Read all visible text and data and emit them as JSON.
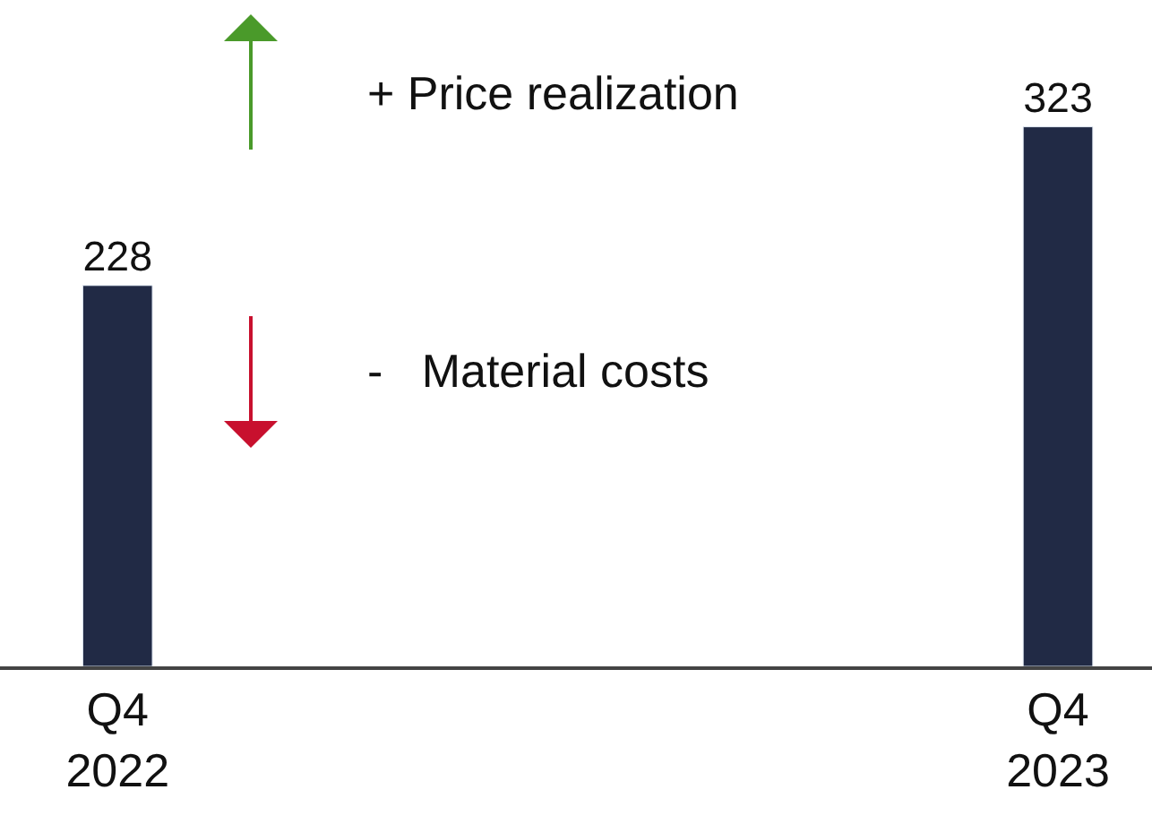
{
  "chart_data": {
    "type": "bar",
    "categories": [
      "Q4\n2022",
      "Q4\n2023"
    ],
    "values": [
      228,
      323
    ],
    "color": "#212a45",
    "data_labels": true,
    "legend": false,
    "annotations": [
      "+ Price realization",
      "-   Material costs"
    ]
  }
}
